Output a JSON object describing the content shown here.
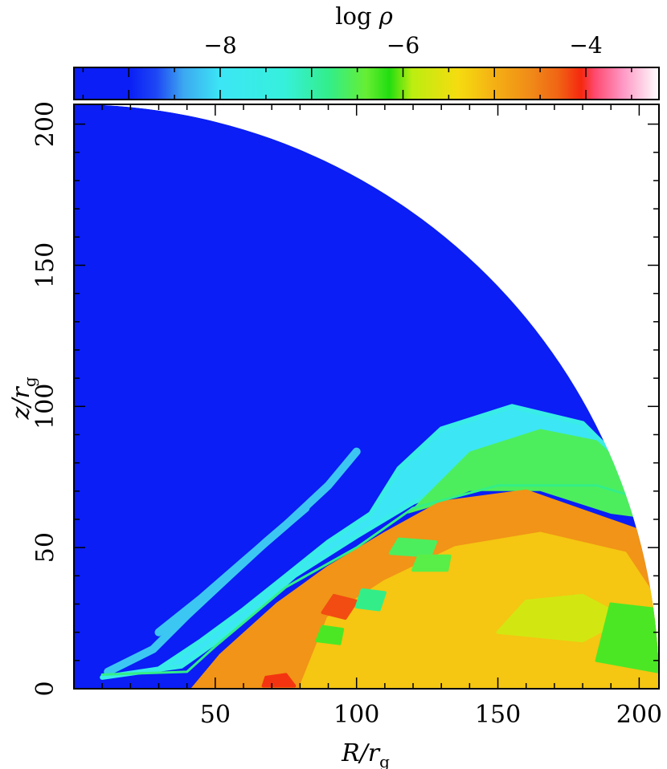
{
  "chart_data": {
    "type": "heatmap",
    "title": "",
    "colorbar": {
      "label": "log ρ",
      "range": [
        -9.6,
        -3.2
      ],
      "ticks": [
        -8,
        -6,
        -4
      ],
      "tick_labels": [
        "−8",
        "−6",
        "−4"
      ],
      "stops": [
        {
          "value": -9.6,
          "color": "#0a1ef5"
        },
        {
          "value": -9.0,
          "color": "#0a1ef5"
        },
        {
          "value": -8.7,
          "color": "#1e46f5"
        },
        {
          "value": -8.4,
          "color": "#3ca8f0"
        },
        {
          "value": -8.0,
          "color": "#3ce6f5"
        },
        {
          "value": -7.3,
          "color": "#36f0dc"
        },
        {
          "value": -6.8,
          "color": "#33ee88"
        },
        {
          "value": -6.4,
          "color": "#66ee33"
        },
        {
          "value": -6.15,
          "color": "#22dd11"
        },
        {
          "value": -5.9,
          "color": "#bbee11"
        },
        {
          "value": -5.4,
          "color": "#f5dc10"
        },
        {
          "value": -5.0,
          "color": "#f5b014"
        },
        {
          "value": -4.6,
          "color": "#f08a18"
        },
        {
          "value": -4.3,
          "color": "#f06414"
        },
        {
          "value": -4.05,
          "color": "#f5280f"
        },
        {
          "value": -3.9,
          "color": "#ff4a70"
        },
        {
          "value": -3.6,
          "color": "#ff96c3"
        },
        {
          "value": -3.2,
          "color": "#ffffff"
        }
      ]
    },
    "xlabel": "R/r",
    "xlabel_subscript": "g",
    "ylabel": "z/r",
    "ylabel_subscript": "g",
    "xlim": [
      0,
      207
    ],
    "ylim": [
      0,
      207
    ],
    "xticks": [
      50,
      100,
      150,
      200
    ],
    "yticks": [
      0,
      50,
      100,
      150,
      200
    ],
    "domain_outer_radius": 207,
    "background_level": -9.0,
    "interface_line": [
      [
        10,
        5
      ],
      [
        40,
        6
      ],
      [
        50,
        15
      ],
      [
        75,
        36
      ],
      [
        100,
        50
      ],
      [
        120,
        64
      ],
      [
        150,
        72
      ],
      [
        185,
        72
      ],
      [
        205,
        66
      ]
    ],
    "regions": [
      {
        "name": "inner-torus",
        "points": [
          [
            42,
            0
          ],
          [
            207,
            0
          ],
          [
            207,
            36
          ],
          [
            200,
            56
          ],
          [
            160,
            70
          ],
          [
            130,
            66
          ],
          [
            110,
            55
          ],
          [
            90,
            43
          ],
          [
            72,
            30
          ],
          [
            52,
            12
          ]
        ],
        "level": -4.7
      },
      {
        "name": "outer-torus",
        "points": [
          [
            80,
            0
          ],
          [
            207,
            0
          ],
          [
            207,
            30
          ],
          [
            195,
            48
          ],
          [
            165,
            55
          ],
          [
            135,
            50
          ],
          [
            110,
            38
          ],
          [
            90,
            25
          ]
        ],
        "level": -5.2
      },
      {
        "name": "yellow-patch",
        "points": [
          [
            150,
            20
          ],
          [
            180,
            17
          ],
          [
            195,
            25
          ],
          [
            180,
            33
          ],
          [
            160,
            31
          ]
        ],
        "level": -5.7
      },
      {
        "name": "hot-spot-1",
        "points": [
          [
            88,
            27
          ],
          [
            96,
            25
          ],
          [
            100,
            31
          ],
          [
            92,
            33
          ]
        ],
        "level": -4.2
      },
      {
        "name": "hot-spot-2",
        "points": [
          [
            67,
            1
          ],
          [
            78,
            1
          ],
          [
            75,
            5
          ],
          [
            68,
            4
          ]
        ],
        "level": -4.1
      },
      {
        "name": "warm-cavity-1",
        "points": [
          [
            100,
            29
          ],
          [
            108,
            28
          ],
          [
            110,
            34
          ],
          [
            102,
            35
          ]
        ],
        "level": -6.8
      },
      {
        "name": "warm-cavity-2",
        "points": [
          [
            86,
            17
          ],
          [
            94,
            16
          ],
          [
            95,
            21
          ],
          [
            88,
            22
          ]
        ],
        "level": -6.3
      },
      {
        "name": "warm-cavity-3",
        "points": [
          [
            112,
            48
          ],
          [
            126,
            47
          ],
          [
            128,
            52
          ],
          [
            115,
            53
          ]
        ],
        "level": -6.6
      },
      {
        "name": "warm-cavity-4",
        "points": [
          [
            120,
            42
          ],
          [
            132,
            42
          ],
          [
            133,
            47
          ],
          [
            122,
            47
          ]
        ],
        "level": -6.5
      },
      {
        "name": "outer-rim-green",
        "points": [
          [
            185,
            10
          ],
          [
            207,
            6
          ],
          [
            207,
            28
          ],
          [
            190,
            30
          ]
        ],
        "level": -6.3
      }
    ],
    "envelope": {
      "green_band": [
        [
          118,
          62
        ],
        [
          140,
          84
        ],
        [
          165,
          92
        ],
        [
          185,
          88
        ],
        [
          200,
          74
        ],
        [
          205,
          60
        ],
        [
          190,
          62
        ],
        [
          165,
          70
        ],
        [
          140,
          70
        ],
        [
          125,
          64
        ]
      ],
      "cyan_band": [
        [
          10,
          4
        ],
        [
          30,
          7
        ],
        [
          45,
          17
        ],
        [
          60,
          28
        ],
        [
          75,
          40
        ],
        [
          90,
          52
        ],
        [
          105,
          62
        ],
        [
          115,
          78
        ],
        [
          130,
          92
        ],
        [
          155,
          100
        ],
        [
          180,
          94
        ],
        [
          198,
          76
        ],
        [
          190,
          66
        ],
        [
          165,
          72
        ],
        [
          140,
          74
        ],
        [
          120,
          66
        ],
        [
          100,
          54
        ],
        [
          78,
          40
        ],
        [
          55,
          20
        ],
        [
          38,
          8
        ]
      ],
      "wisps": [
        [
          [
            30,
            20
          ],
          [
            45,
            32
          ],
          [
            60,
            45
          ],
          [
            75,
            58
          ],
          [
            90,
            72
          ],
          [
            100,
            84
          ]
        ],
        [
          [
            12,
            6
          ],
          [
            28,
            14
          ],
          [
            40,
            26
          ],
          [
            55,
            40
          ],
          [
            68,
            52
          ],
          [
            82,
            64
          ]
        ]
      ]
    }
  }
}
